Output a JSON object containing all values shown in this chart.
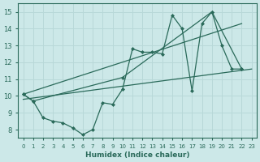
{
  "xlabel": "Humidex (Indice chaleur)",
  "bg_color": "#cce8e8",
  "grid_color": "#b8d8d8",
  "line_color": "#2a6a5a",
  "xlim": [
    -0.5,
    23.5
  ],
  "ylim": [
    7.5,
    15.5
  ],
  "xticks": [
    0,
    1,
    2,
    3,
    4,
    5,
    6,
    7,
    8,
    9,
    10,
    11,
    12,
    13,
    14,
    15,
    16,
    17,
    18,
    19,
    20,
    21,
    22,
    23
  ],
  "yticks": [
    8,
    9,
    10,
    11,
    12,
    13,
    14,
    15
  ],
  "zigzag_x": [
    0,
    1,
    2,
    3,
    4,
    5,
    6,
    7,
    8,
    9,
    10,
    11,
    12,
    13,
    14,
    15,
    16,
    17,
    18,
    19,
    20,
    21,
    22
  ],
  "zigzag_y": [
    10.1,
    9.7,
    8.7,
    8.5,
    8.4,
    8.1,
    7.7,
    8.0,
    9.6,
    9.5,
    10.4,
    12.8,
    12.6,
    12.6,
    12.5,
    14.8,
    14.0,
    10.3,
    14.3,
    15.0,
    13.0,
    11.6,
    11.6
  ],
  "trend1_x": [
    0,
    23
  ],
  "trend1_y": [
    9.8,
    11.6
  ],
  "trend2_x": [
    0,
    22
  ],
  "trend2_y": [
    10.1,
    14.3
  ],
  "line3_x": [
    0,
    1,
    10,
    19,
    22
  ],
  "line3_y": [
    10.1,
    9.7,
    11.1,
    15.0,
    11.6
  ]
}
